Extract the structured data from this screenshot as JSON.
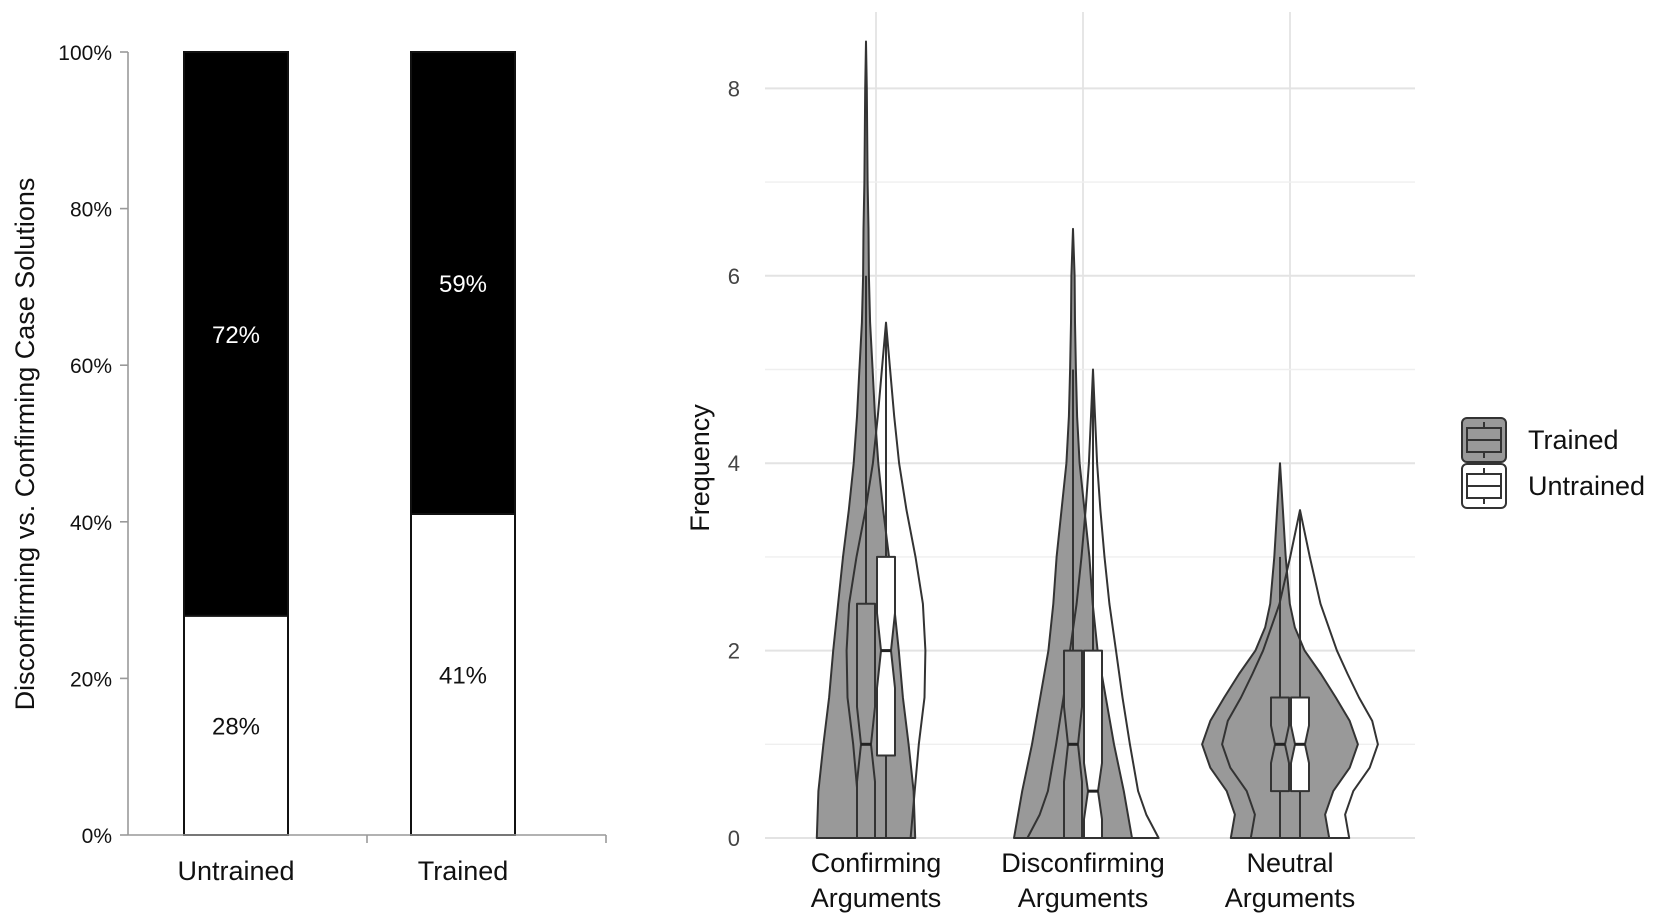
{
  "chart_data": [
    {
      "type": "bar",
      "subtype": "stacked-100",
      "categories": [
        "Untrained",
        "Trained"
      ],
      "series": [
        {
          "values": [
            28,
            41
          ],
          "labels": [
            "28%",
            "41%"
          ],
          "color": "#ffffff"
        },
        {
          "values": [
            72,
            59
          ],
          "labels": [
            "72%",
            "59%"
          ],
          "color": "#000000"
        }
      ],
      "xlabel": "",
      "ylabel": "Disconfirming vs. Confirming Case Solutions",
      "ylim": [
        0,
        100
      ],
      "yticks": [
        "0%",
        "20%",
        "40%",
        "60%",
        "80%",
        "100%"
      ],
      "grid": false,
      "legend": "none"
    },
    {
      "type": "violin",
      "categories": [
        "Confirming Arguments",
        "Disconfirming Arguments",
        "Neutral Arguments"
      ],
      "category_lines": [
        [
          "Confirming",
          "Arguments"
        ],
        [
          "Disconfirming",
          "Arguments"
        ],
        [
          "Neutral",
          "Arguments"
        ]
      ],
      "ylabel": "Frequency",
      "xlabel": "",
      "ylim": [
        0,
        8.8
      ],
      "yticks": [
        0,
        2,
        4,
        6,
        8
      ],
      "grid": true,
      "legend": "right",
      "legend_entries": [
        "Trained",
        "Untrained"
      ],
      "series": [
        {
          "name": "Trained",
          "color": "#999999",
          "violins": [
            {
              "category": "Confirming Arguments",
              "density": [
                [
                  0,
                  0.6
                ],
                [
                  0.5,
                  0.58
                ],
                [
                  1.0,
                  0.52
                ],
                [
                  1.5,
                  0.45
                ],
                [
                  2.0,
                  0.4
                ],
                [
                  2.5,
                  0.34
                ],
                [
                  3.0,
                  0.28
                ],
                [
                  3.5,
                  0.21
                ],
                [
                  4.0,
                  0.15
                ],
                [
                  4.5,
                  0.11
                ],
                [
                  5.0,
                  0.08
                ],
                [
                  5.5,
                  0.05
                ],
                [
                  6.0,
                  0.035
                ],
                [
                  6.5,
                  0.03
                ],
                [
                  7.0,
                  0.02
                ],
                [
                  7.5,
                  0.015
                ],
                [
                  8.0,
                  0.01
                ],
                [
                  8.5,
                  0.0
                ]
              ],
              "box": {
                "min": 0,
                "q1": 0,
                "median": 1,
                "q3": 2.5,
                "max": 6,
                "notch": [
                  0.6,
                  1.4
                ]
              }
            },
            {
              "category": "Disconfirming Arguments",
              "density": [
                [
                  0,
                  0.72
                ],
                [
                  0.5,
                  0.62
                ],
                [
                  1.0,
                  0.5
                ],
                [
                  1.5,
                  0.4
                ],
                [
                  2.0,
                  0.3
                ],
                [
                  2.5,
                  0.24
                ],
                [
                  3.0,
                  0.2
                ],
                [
                  3.5,
                  0.14
                ],
                [
                  4.0,
                  0.08
                ],
                [
                  4.5,
                  0.05
                ],
                [
                  5.0,
                  0.035
                ],
                [
                  5.5,
                  0.025
                ],
                [
                  6.0,
                  0.02
                ],
                [
                  6.5,
                  0.0
                ]
              ],
              "box": {
                "min": 0,
                "q1": 0,
                "median": 1,
                "q3": 2,
                "max": 5,
                "notch": [
                  0.6,
                  1.4
                ]
              }
            },
            {
              "category": "Neutral Arguments",
              "density": [
                [
                  0,
                  0.6
                ],
                [
                  0.25,
                  0.55
                ],
                [
                  0.5,
                  0.65
                ],
                [
                  0.75,
                  0.85
                ],
                [
                  1.0,
                  0.95
                ],
                [
                  1.25,
                  0.85
                ],
                [
                  1.5,
                  0.68
                ],
                [
                  1.75,
                  0.5
                ],
                [
                  2.0,
                  0.3
                ],
                [
                  2.25,
                  0.18
                ],
                [
                  2.5,
                  0.12
                ],
                [
                  3.0,
                  0.07
                ],
                [
                  3.5,
                  0.035
                ],
                [
                  4.0,
                  0.0
                ]
              ],
              "box": {
                "min": 0,
                "q1": 0.5,
                "median": 1,
                "q3": 1.5,
                "max": 3,
                "notch": [
                  0.8,
                  1.2
                ]
              }
            }
          ]
        },
        {
          "name": "Untrained",
          "color": "#ffffff",
          "violins": [
            {
              "category": "Confirming Arguments",
              "density": [
                [
                  0,
                  0.3
                ],
                [
                  0.5,
                  0.35
                ],
                [
                  1.0,
                  0.4
                ],
                [
                  1.5,
                  0.47
                ],
                [
                  2.0,
                  0.48
                ],
                [
                  2.5,
                  0.45
                ],
                [
                  3.0,
                  0.36
                ],
                [
                  3.5,
                  0.25
                ],
                [
                  4.0,
                  0.16
                ],
                [
                  4.5,
                  0.1
                ],
                [
                  5.0,
                  0.05
                ],
                [
                  5.5,
                  0.0
                ]
              ],
              "box": {
                "min": 0,
                "q1": 0.88,
                "median": 2,
                "q3": 3,
                "max": 5.5,
                "notch": [
                  1.6,
                  2.4
                ]
              }
            },
            {
              "category": "Disconfirming Arguments",
              "density": [
                [
                  0,
                  0.8
                ],
                [
                  0.25,
                  0.65
                ],
                [
                  0.5,
                  0.55
                ],
                [
                  1.0,
                  0.45
                ],
                [
                  1.5,
                  0.36
                ],
                [
                  2.0,
                  0.28
                ],
                [
                  2.5,
                  0.2
                ],
                [
                  3.0,
                  0.14
                ],
                [
                  3.5,
                  0.09
                ],
                [
                  4.0,
                  0.05
                ],
                [
                  4.5,
                  0.025
                ],
                [
                  5.0,
                  0.0
                ]
              ],
              "box": {
                "min": 0,
                "q1": 0,
                "median": 0.5,
                "q3": 2,
                "max": 5,
                "notch": [
                  0.2,
                  0.8
                ]
              }
            },
            {
              "category": "Neutral Arguments",
              "density": [
                [
                  0,
                  0.6
                ],
                [
                  0.25,
                  0.55
                ],
                [
                  0.5,
                  0.65
                ],
                [
                  0.75,
                  0.85
                ],
                [
                  1.0,
                  0.95
                ],
                [
                  1.25,
                  0.88
                ],
                [
                  1.5,
                  0.72
                ],
                [
                  1.75,
                  0.58
                ],
                [
                  2.0,
                  0.45
                ],
                [
                  2.5,
                  0.25
                ],
                [
                  3.0,
                  0.12
                ],
                [
                  3.5,
                  0.0
                ]
              ],
              "box": {
                "min": 0,
                "q1": 0.5,
                "median": 1,
                "q3": 1.5,
                "max": 3.5,
                "notch": [
                  0.8,
                  1.2
                ]
              }
            }
          ]
        }
      ]
    }
  ]
}
